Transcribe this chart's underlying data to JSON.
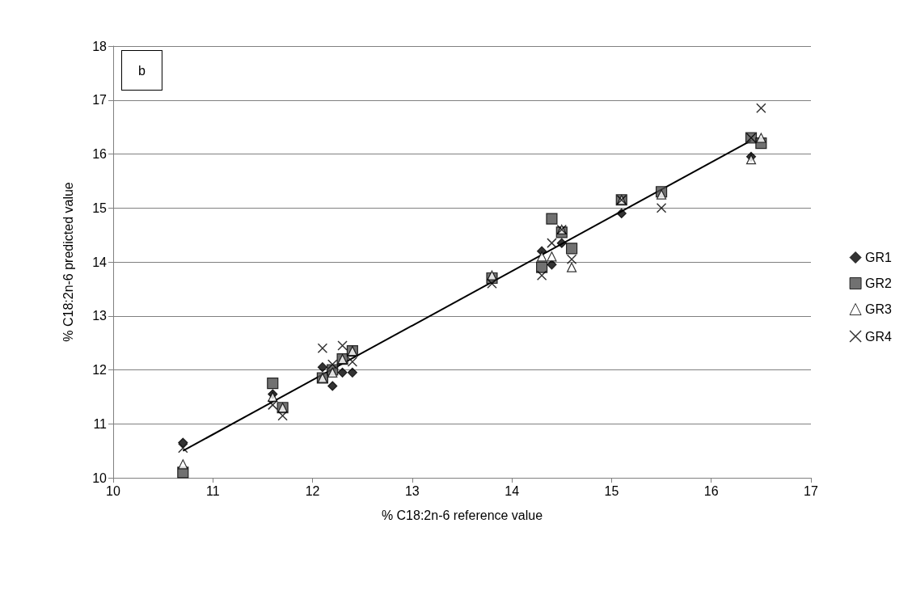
{
  "chart_data": {
    "type": "scatter",
    "xlabel": "% C18:2n-6 reference value",
    "ylabel": "% C18:2n-6 predicted value",
    "annotations": [
      "b"
    ],
    "xlim": [
      10,
      17
    ],
    "xticks": [
      10,
      11,
      12,
      13,
      14,
      15,
      16,
      17
    ],
    "ylim": [
      10,
      18
    ],
    "yticks": [
      10,
      11,
      12,
      13,
      14,
      15,
      16,
      17,
      18
    ],
    "grid": "y",
    "legend": "right",
    "series": [
      {
        "name": "GR1",
        "color": "#000000",
        "marker": "diamond",
        "x": [
          10.7,
          11.6,
          12.1,
          12.2,
          12.3,
          12.4,
          13.8,
          14.3,
          14.4,
          14.5,
          15.1,
          16.4
        ],
        "values": [
          10.65,
          11.55,
          12.05,
          11.7,
          11.95,
          11.95,
          null,
          14.2,
          13.95,
          14.35,
          14.9,
          15.95
        ]
      },
      {
        "name": "GR2",
        "color": "#4d4d4d",
        "marker": "square",
        "x": [
          10.7,
          11.6,
          11.7,
          12.1,
          12.2,
          12.3,
          12.4,
          13.8,
          14.3,
          14.4,
          14.5,
          14.6,
          15.1,
          15.5,
          16.4,
          16.5
        ],
        "values": [
          10.1,
          11.75,
          11.3,
          11.85,
          12.0,
          12.2,
          12.35,
          13.7,
          13.9,
          14.8,
          14.55,
          14.25,
          15.15,
          15.3,
          16.3,
          16.2
        ]
      },
      {
        "name": "GR3",
        "color": "#ffffff",
        "marker": "triangle",
        "x": [
          10.7,
          11.6,
          11.7,
          12.1,
          12.2,
          12.3,
          12.4,
          13.8,
          14.3,
          14.4,
          14.5,
          14.6,
          15.1,
          15.5,
          16.4,
          16.5
        ],
        "values": [
          10.25,
          11.5,
          11.3,
          11.85,
          11.95,
          12.2,
          12.35,
          13.75,
          14.1,
          14.1,
          14.6,
          13.9,
          15.15,
          15.25,
          15.9,
          16.3
        ]
      },
      {
        "name": "GR4",
        "color": "#000000",
        "marker": "cross",
        "x": [
          10.7,
          11.6,
          11.7,
          12.1,
          12.2,
          12.3,
          12.4,
          13.8,
          14.3,
          14.4,
          14.5,
          14.6,
          15.1,
          15.5,
          16.4,
          16.5
        ],
        "values": [
          10.55,
          11.35,
          11.15,
          12.4,
          12.1,
          12.45,
          12.15,
          13.6,
          13.75,
          14.35,
          14.6,
          14.05,
          15.15,
          15.0,
          16.3,
          16.85
        ]
      },
      {
        "type": "line",
        "color": "#000000",
        "marker": "none",
        "x": [
          10.7,
          16.4
        ],
        "values": [
          10.5,
          16.25
        ]
      }
    ]
  }
}
